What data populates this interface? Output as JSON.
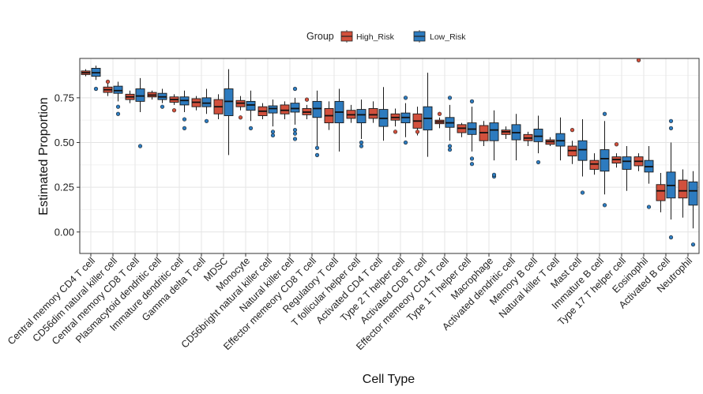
{
  "chart_data": {
    "type": "boxplot",
    "title": "",
    "xlabel": "Cell Type",
    "ylabel": "Estimated Proportion",
    "ylim": [
      -0.12,
      0.97
    ],
    "yticks": [
      0.0,
      0.25,
      0.5,
      0.75
    ],
    "ytick_labels": [
      "0.00",
      "0.25",
      "0.50",
      "0.75"
    ],
    "grid": true,
    "legend": {
      "title": "Group",
      "position": "top",
      "entries": [
        {
          "name": "High_Risk",
          "color": "#d2503c"
        },
        {
          "name": "Low_Risk",
          "color": "#2d7bbf"
        }
      ]
    },
    "categories": [
      "Central memory CD4 T cell",
      "CD56dim natural killer cell",
      "Central memory CD8 T cell",
      "Plasmacytoid dendritic cell",
      "Immature dendritic cell",
      "Gamma delta T cell",
      "MDSC",
      "Monocyte",
      "CD56bright natural killer cell",
      "Natural killer cell",
      "Effector memeory CD8 T cell",
      "Regulatory T cell",
      "T follicular helper cell",
      "Activated CD4 T cell",
      "Type 2 T helper cell",
      "Activated CD8 T cell",
      "Effector memeory CD4 T cell",
      "Type 1 T helper cell",
      "Macrophage",
      "Activated dendritic cell",
      "Memory B cell",
      "Natural killer T cell",
      "Mast cell",
      "Immature  B cell",
      "Type 17 T helper cell",
      "Eosinophil",
      "Activated B cell",
      "Neutrophil"
    ],
    "series": [
      {
        "name": "High_Risk",
        "boxes": [
          {
            "min": 0.87,
            "q1": 0.88,
            "median": 0.89,
            "q3": 0.9,
            "max": 0.91,
            "outliers": []
          },
          {
            "min": 0.76,
            "q1": 0.78,
            "median": 0.795,
            "q3": 0.81,
            "max": 0.83,
            "outliers": [
              0.84
            ]
          },
          {
            "min": 0.72,
            "q1": 0.74,
            "median": 0.755,
            "q3": 0.77,
            "max": 0.79,
            "outliers": []
          },
          {
            "min": 0.74,
            "q1": 0.755,
            "median": 0.765,
            "q3": 0.78,
            "max": 0.79,
            "outliers": []
          },
          {
            "min": 0.71,
            "q1": 0.725,
            "median": 0.74,
            "q3": 0.755,
            "max": 0.77,
            "outliers": [
              0.68
            ]
          },
          {
            "min": 0.68,
            "q1": 0.7,
            "median": 0.725,
            "q3": 0.745,
            "max": 0.76,
            "outliers": []
          },
          {
            "min": 0.63,
            "q1": 0.66,
            "median": 0.7,
            "q3": 0.74,
            "max": 0.77,
            "outliers": []
          },
          {
            "min": 0.68,
            "q1": 0.7,
            "median": 0.72,
            "q3": 0.735,
            "max": 0.76,
            "outliers": [
              0.64
            ]
          },
          {
            "min": 0.63,
            "q1": 0.65,
            "median": 0.675,
            "q3": 0.7,
            "max": 0.72,
            "outliers": []
          },
          {
            "min": 0.63,
            "q1": 0.66,
            "median": 0.68,
            "q3": 0.71,
            "max": 0.73,
            "outliers": []
          },
          {
            "min": 0.63,
            "q1": 0.655,
            "median": 0.67,
            "q3": 0.69,
            "max": 0.71,
            "outliers": [
              0.74
            ]
          },
          {
            "min": 0.57,
            "q1": 0.61,
            "median": 0.65,
            "q3": 0.69,
            "max": 0.73,
            "outliers": []
          },
          {
            "min": 0.61,
            "q1": 0.635,
            "median": 0.655,
            "q3": 0.68,
            "max": 0.71,
            "outliers": []
          },
          {
            "min": 0.61,
            "q1": 0.635,
            "median": 0.655,
            "q3": 0.69,
            "max": 0.73,
            "outliers": []
          },
          {
            "min": 0.59,
            "q1": 0.625,
            "median": 0.64,
            "q3": 0.66,
            "max": 0.69,
            "outliers": [
              0.56
            ]
          },
          {
            "min": 0.54,
            "q1": 0.58,
            "median": 0.62,
            "q3": 0.66,
            "max": 0.7,
            "outliers": [
              0.56
            ]
          },
          {
            "min": 0.58,
            "q1": 0.605,
            "median": 0.615,
            "q3": 0.625,
            "max": 0.64,
            "outliers": [
              0.66
            ]
          },
          {
            "min": 0.53,
            "q1": 0.555,
            "median": 0.58,
            "q3": 0.6,
            "max": 0.61,
            "outliers": []
          },
          {
            "min": 0.48,
            "q1": 0.51,
            "median": 0.555,
            "q3": 0.595,
            "max": 0.62,
            "outliers": []
          },
          {
            "min": 0.52,
            "q1": 0.545,
            "median": 0.56,
            "q3": 0.57,
            "max": 0.59,
            "outliers": []
          },
          {
            "min": 0.48,
            "q1": 0.51,
            "median": 0.525,
            "q3": 0.545,
            "max": 0.56,
            "outliers": []
          },
          {
            "min": 0.48,
            "q1": 0.49,
            "median": 0.505,
            "q3": 0.515,
            "max": 0.53,
            "outliers": []
          },
          {
            "min": 0.38,
            "q1": 0.425,
            "median": 0.455,
            "q3": 0.48,
            "max": 0.51,
            "outliers": [
              0.57
            ]
          },
          {
            "min": 0.32,
            "q1": 0.35,
            "median": 0.38,
            "q3": 0.4,
            "max": 0.44,
            "outliers": []
          },
          {
            "min": 0.36,
            "q1": 0.385,
            "median": 0.405,
            "q3": 0.42,
            "max": 0.44,
            "outliers": [
              0.49
            ]
          },
          {
            "min": 0.34,
            "q1": 0.37,
            "median": 0.395,
            "q3": 0.42,
            "max": 0.44,
            "outliers": [
              0.96
            ]
          },
          {
            "min": 0.11,
            "q1": 0.175,
            "median": 0.23,
            "q3": 0.265,
            "max": 0.33,
            "outliers": []
          },
          {
            "min": 0.08,
            "q1": 0.19,
            "median": 0.23,
            "q3": 0.29,
            "max": 0.35,
            "outliers": []
          }
        ]
      },
      {
        "name": "Low_Risk",
        "boxes": [
          {
            "min": 0.85,
            "q1": 0.87,
            "median": 0.89,
            "q3": 0.915,
            "max": 0.93,
            "outliers": [
              0.8
            ]
          },
          {
            "min": 0.73,
            "q1": 0.775,
            "median": 0.79,
            "q3": 0.815,
            "max": 0.84,
            "outliers": [
              0.7,
              0.66
            ]
          },
          {
            "min": 0.67,
            "q1": 0.73,
            "median": 0.76,
            "q3": 0.8,
            "max": 0.86,
            "outliers": [
              0.48
            ]
          },
          {
            "min": 0.72,
            "q1": 0.74,
            "median": 0.755,
            "q3": 0.775,
            "max": 0.8,
            "outliers": [
              0.7
            ]
          },
          {
            "min": 0.67,
            "q1": 0.71,
            "median": 0.735,
            "q3": 0.755,
            "max": 0.79,
            "outliers": [
              0.58,
              0.63
            ]
          },
          {
            "min": 0.66,
            "q1": 0.7,
            "median": 0.72,
            "q3": 0.75,
            "max": 0.8,
            "outliers": [
              0.62
            ]
          },
          {
            "min": 0.43,
            "q1": 0.65,
            "median": 0.73,
            "q3": 0.8,
            "max": 0.91,
            "outliers": []
          },
          {
            "min": 0.62,
            "q1": 0.68,
            "median": 0.71,
            "q3": 0.73,
            "max": 0.79,
            "outliers": [
              0.58
            ]
          },
          {
            "min": 0.59,
            "q1": 0.665,
            "median": 0.69,
            "q3": 0.705,
            "max": 0.74,
            "outliers": [
              0.54,
              0.56
            ]
          },
          {
            "min": 0.6,
            "q1": 0.67,
            "median": 0.69,
            "q3": 0.72,
            "max": 0.75,
            "outliers": [
              0.52,
              0.55,
              0.57,
              0.8
            ]
          },
          {
            "min": 0.48,
            "q1": 0.64,
            "median": 0.69,
            "q3": 0.73,
            "max": 0.79,
            "outliers": [
              0.43,
              0.47
            ]
          },
          {
            "min": 0.45,
            "q1": 0.61,
            "median": 0.67,
            "q3": 0.73,
            "max": 0.8,
            "outliers": []
          },
          {
            "min": 0.52,
            "q1": 0.61,
            "median": 0.655,
            "q3": 0.685,
            "max": 0.74,
            "outliers": [
              0.48,
              0.5
            ]
          },
          {
            "min": 0.51,
            "q1": 0.59,
            "median": 0.635,
            "q3": 0.685,
            "max": 0.81,
            "outliers": []
          },
          {
            "min": 0.53,
            "q1": 0.61,
            "median": 0.64,
            "q3": 0.665,
            "max": 0.72,
            "outliers": [
              0.5,
              0.75
            ]
          },
          {
            "min": 0.42,
            "q1": 0.57,
            "median": 0.635,
            "q3": 0.7,
            "max": 0.89,
            "outliers": []
          },
          {
            "min": 0.51,
            "q1": 0.585,
            "median": 0.61,
            "q3": 0.64,
            "max": 0.71,
            "outliers": [
              0.46,
              0.48,
              0.75
            ]
          },
          {
            "min": 0.45,
            "q1": 0.545,
            "median": 0.575,
            "q3": 0.61,
            "max": 0.7,
            "outliers": [
              0.38,
              0.41,
              0.73
            ]
          },
          {
            "min": 0.4,
            "q1": 0.51,
            "median": 0.57,
            "q3": 0.61,
            "max": 0.68,
            "outliers": [
              0.31,
              0.32
            ]
          },
          {
            "min": 0.4,
            "q1": 0.515,
            "median": 0.555,
            "q3": 0.6,
            "max": 0.66,
            "outliers": []
          },
          {
            "min": 0.44,
            "q1": 0.505,
            "median": 0.535,
            "q3": 0.575,
            "max": 0.65,
            "outliers": [
              0.39
            ]
          },
          {
            "min": 0.4,
            "q1": 0.48,
            "median": 0.51,
            "q3": 0.55,
            "max": 0.64,
            "outliers": []
          },
          {
            "min": 0.31,
            "q1": 0.4,
            "median": 0.46,
            "q3": 0.51,
            "max": 0.63,
            "outliers": [
              0.22
            ]
          },
          {
            "min": 0.21,
            "q1": 0.34,
            "median": 0.41,
            "q3": 0.46,
            "max": 0.62,
            "outliers": [
              0.15,
              0.66
            ]
          },
          {
            "min": 0.23,
            "q1": 0.35,
            "median": 0.395,
            "q3": 0.42,
            "max": 0.48,
            "outliers": []
          },
          {
            "min": 0.27,
            "q1": 0.335,
            "median": 0.365,
            "q3": 0.4,
            "max": 0.48,
            "outliers": [
              0.14
            ]
          },
          {
            "min": 0.07,
            "q1": 0.19,
            "median": 0.26,
            "q3": 0.335,
            "max": 0.5,
            "outliers": [
              -0.03,
              0.58,
              0.62
            ]
          },
          {
            "min": 0.02,
            "q1": 0.15,
            "median": 0.23,
            "q3": 0.28,
            "max": 0.34,
            "outliers": [
              -0.07
            ]
          }
        ]
      }
    ]
  }
}
